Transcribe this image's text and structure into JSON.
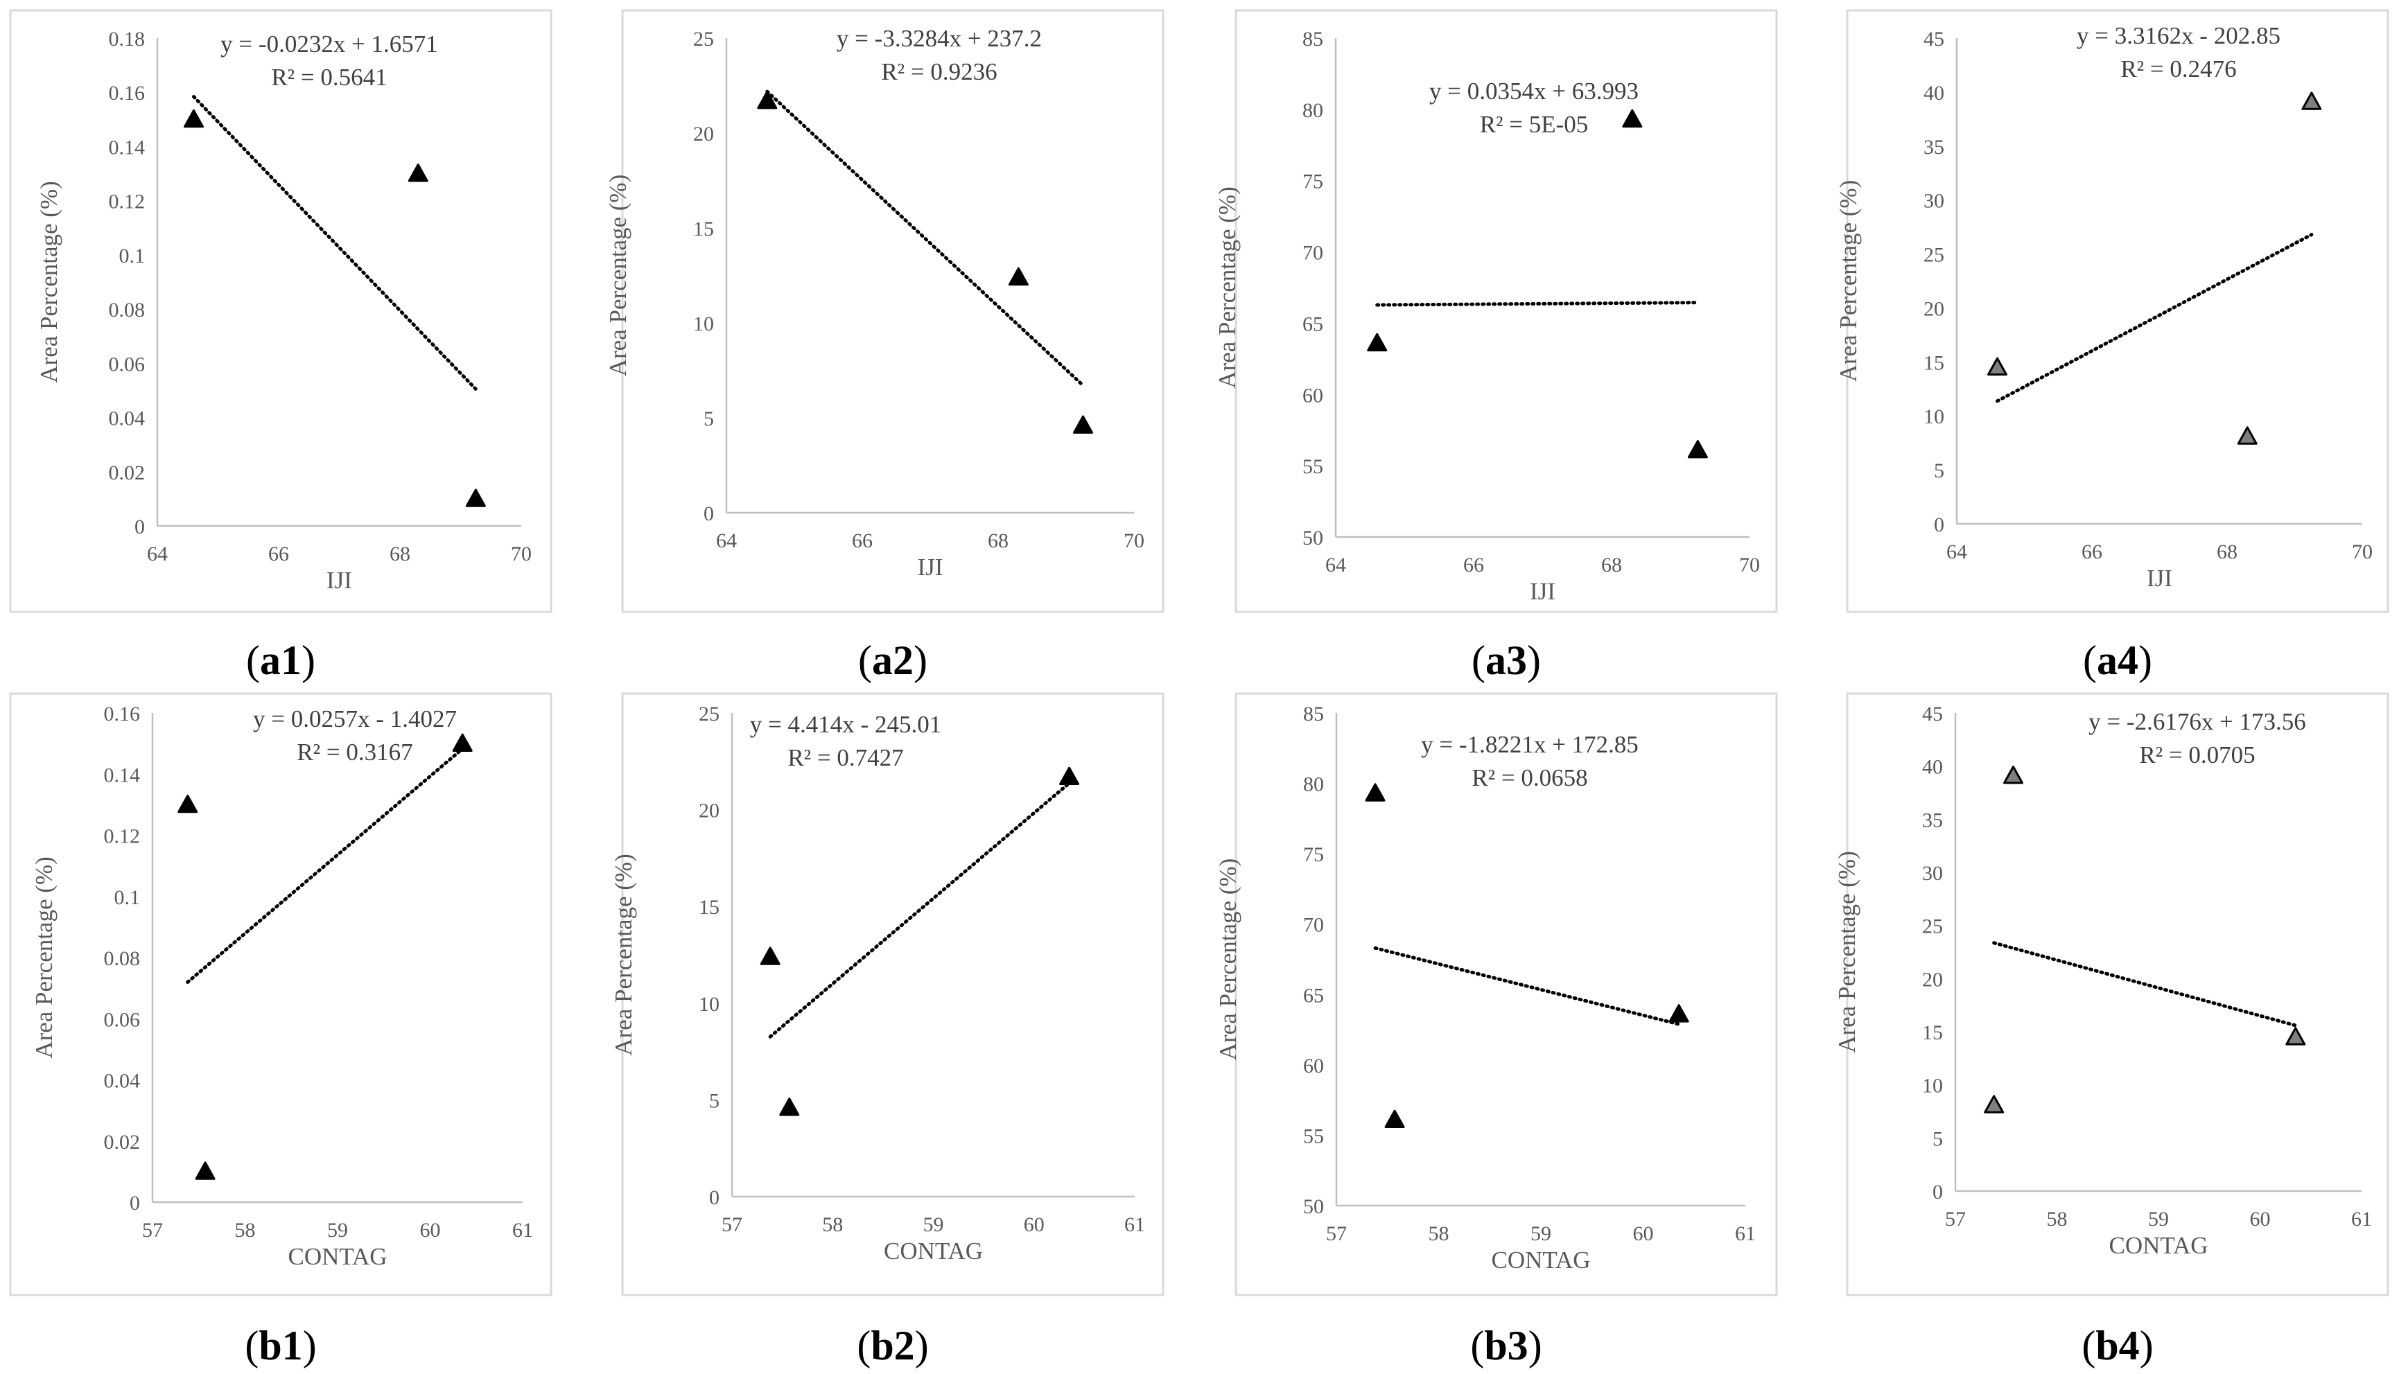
{
  "chart_data": [
    {
      "id": "a1",
      "type": "scatter",
      "caption_letters": "a1",
      "caption_open": "(",
      "caption_close": ")",
      "xlabel": "IJI",
      "ylabel": "Area Percentage (%)",
      "xlim": [
        64,
        70
      ],
      "xticks": [
        "64",
        "66",
        "68",
        "70"
      ],
      "ylim": [
        0,
        0.18
      ],
      "yticks": [
        "0",
        "0.02",
        "0.04",
        "0.06",
        "0.08",
        "0.1",
        "0.12",
        "0.14",
        "0.16",
        "0.18"
      ],
      "points": [
        {
          "x": 64.6,
          "y": 0.15
        },
        {
          "x": 68.3,
          "y": 0.13
        },
        {
          "x": 69.25,
          "y": 0.01
        }
      ],
      "trendline": {
        "slope": -0.0232,
        "intercept": 1.6571,
        "x_range": [
          64.6,
          69.25
        ]
      },
      "equation": "y = -0.0232x + 1.6571",
      "r2": "R² = 0.5641",
      "marker_fill": "#000000"
    },
    {
      "id": "a2",
      "type": "scatter",
      "caption_letters": "a2",
      "caption_open": "(",
      "caption_close": ")",
      "xlabel": "IJI",
      "ylabel": "Area Percentage (%)",
      "xlim": [
        64,
        70
      ],
      "xticks": [
        "64",
        "66",
        "68",
        "70"
      ],
      "ylim": [
        0,
        25
      ],
      "yticks": [
        "0",
        "5",
        "10",
        "15",
        "20",
        "25"
      ],
      "points": [
        {
          "x": 64.6,
          "y": 21.7
        },
        {
          "x": 68.3,
          "y": 12.4
        },
        {
          "x": 69.25,
          "y": 4.6
        }
      ],
      "trendline": {
        "slope": -3.3284,
        "intercept": 237.2,
        "x_range": [
          64.6,
          69.25
        ]
      },
      "equation": "y = -3.3284x + 237.2",
      "r2": "R² = 0.9236",
      "marker_fill": "#000000"
    },
    {
      "id": "a3",
      "type": "scatter",
      "caption_letters": "a3",
      "caption_open": "(",
      "caption_close": ")",
      "xlabel": "IJI",
      "ylabel": "Area Percentage (%)",
      "xlim": [
        64,
        70
      ],
      "xticks": [
        "64",
        "66",
        "68",
        "70"
      ],
      "ylim": [
        50,
        85
      ],
      "yticks": [
        "50",
        "55",
        "60",
        "65",
        "70",
        "75",
        "80",
        "85"
      ],
      "points": [
        {
          "x": 64.6,
          "y": 63.6
        },
        {
          "x": 68.3,
          "y": 79.3
        },
        {
          "x": 69.25,
          "y": 56.1
        }
      ],
      "trendline": {
        "slope": 0.0354,
        "intercept": 63.993,
        "x_range": [
          64.6,
          69.25
        ]
      },
      "equation": "y = 0.0354x + 63.993",
      "r2": "R² = 5E-05",
      "marker_fill": "#000000"
    },
    {
      "id": "a4",
      "type": "scatter",
      "caption_letters": "a4",
      "caption_open": "(",
      "caption_close": ")",
      "xlabel": "IJI",
      "ylabel": "Area Percentage (%)",
      "xlim": [
        64,
        70
      ],
      "xticks": [
        "64",
        "66",
        "68",
        "70"
      ],
      "ylim": [
        0,
        45
      ],
      "yticks": [
        "0",
        "5",
        "10",
        "15",
        "20",
        "25",
        "30",
        "35",
        "40",
        "45"
      ],
      "points": [
        {
          "x": 64.6,
          "y": 14.5
        },
        {
          "x": 68.3,
          "y": 8.1
        },
        {
          "x": 69.25,
          "y": 39.1
        }
      ],
      "trendline": {
        "slope": 3.3162,
        "intercept": -202.85,
        "x_range": [
          64.6,
          69.25
        ]
      },
      "equation": "y = 3.3162x - 202.85",
      "r2": "R² = 0.2476",
      "marker_fill": "#7f7f7f"
    },
    {
      "id": "b1",
      "type": "scatter",
      "caption_letters": "b1",
      "caption_open": "(",
      "caption_close": ")",
      "xlabel": "CONTAG",
      "ylabel": "Area Percentage (%)",
      "xlim": [
        57,
        61
      ],
      "xticks": [
        "57",
        "58",
        "59",
        "60",
        "61"
      ],
      "ylim": [
        0,
        0.16
      ],
      "yticks": [
        "0",
        "0.02",
        "0.04",
        "0.06",
        "0.08",
        "0.1",
        "0.12",
        "0.14",
        "0.16"
      ],
      "points": [
        {
          "x": 57.38,
          "y": 0.13
        },
        {
          "x": 57.57,
          "y": 0.01
        },
        {
          "x": 60.35,
          "y": 0.15
        }
      ],
      "trendline": {
        "slope": 0.0257,
        "intercept": -1.4027,
        "x_range": [
          57.38,
          60.35
        ]
      },
      "equation": "y = 0.0257x - 1.4027",
      "r2": "R² = 0.3167",
      "marker_fill": "#000000"
    },
    {
      "id": "b2",
      "type": "scatter",
      "caption_letters": "b2",
      "caption_open": "(",
      "caption_close": ")",
      "xlabel": "CONTAG",
      "ylabel": "Area Percentage (%)",
      "xlim": [
        57,
        61
      ],
      "xticks": [
        "57",
        "58",
        "59",
        "60",
        "61"
      ],
      "ylim": [
        0,
        25
      ],
      "yticks": [
        "0",
        "5",
        "10",
        "15",
        "20",
        "25"
      ],
      "points": [
        {
          "x": 57.38,
          "y": 12.4
        },
        {
          "x": 57.57,
          "y": 4.6
        },
        {
          "x": 60.35,
          "y": 21.7
        }
      ],
      "trendline": {
        "slope": 4.414,
        "intercept": -245.01,
        "x_range": [
          57.38,
          60.35
        ]
      },
      "equation": "y = 4.414x - 245.01",
      "r2": "R² = 0.7427",
      "marker_fill": "#000000"
    },
    {
      "id": "b3",
      "type": "scatter",
      "caption_letters": "b3",
      "caption_open": "(",
      "caption_close": ")",
      "xlabel": "CONTAG",
      "ylabel": "Area Percentage (%)",
      "xlim": [
        57,
        61
      ],
      "xticks": [
        "57",
        "58",
        "59",
        "60",
        "61"
      ],
      "ylim": [
        50,
        85
      ],
      "yticks": [
        "50",
        "55",
        "60",
        "65",
        "70",
        "75",
        "80",
        "85"
      ],
      "points": [
        {
          "x": 57.38,
          "y": 79.3
        },
        {
          "x": 57.57,
          "y": 56.1
        },
        {
          "x": 60.35,
          "y": 63.6
        }
      ],
      "trendline": {
        "slope": -1.8221,
        "intercept": 172.85,
        "x_range": [
          57.38,
          60.35
        ]
      },
      "equation": "y = -1.8221x + 172.85",
      "r2": "R² = 0.0658",
      "marker_fill": "#000000"
    },
    {
      "id": "b4",
      "type": "scatter",
      "caption_letters": "b4",
      "caption_open": "(",
      "caption_close": ")",
      "xlabel": "CONTAG",
      "ylabel": "Area Percentage (%)",
      "xlim": [
        57,
        61
      ],
      "xticks": [
        "57",
        "58",
        "59",
        "60",
        "61"
      ],
      "ylim": [
        0,
        45
      ],
      "yticks": [
        "0",
        "5",
        "10",
        "15",
        "20",
        "25",
        "30",
        "35",
        "40",
        "45"
      ],
      "points": [
        {
          "x": 57.38,
          "y": 8.1
        },
        {
          "x": 57.57,
          "y": 39.1
        },
        {
          "x": 60.35,
          "y": 14.5
        }
      ],
      "trendline": {
        "slope": -2.6176,
        "intercept": 173.56,
        "x_range": [
          57.38,
          60.35
        ]
      },
      "equation": "y = -2.6176x + 173.56",
      "r2": "R² = 0.0705",
      "marker_fill": "#7f7f7f"
    }
  ]
}
